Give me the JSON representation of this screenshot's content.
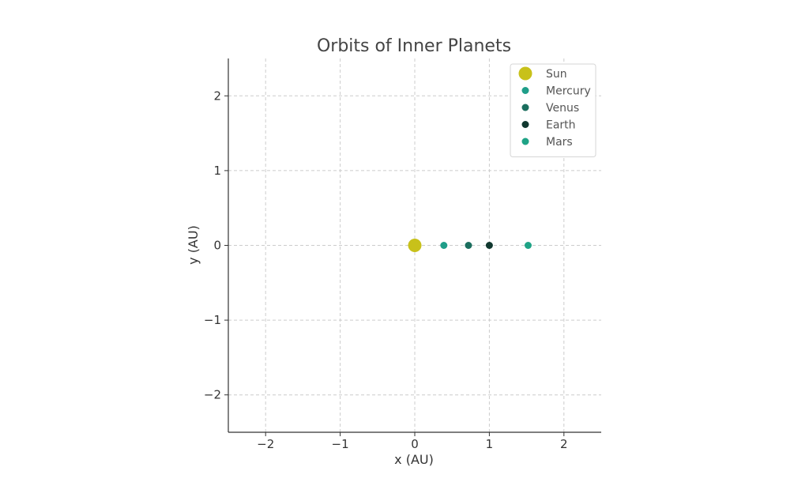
{
  "chart_data": {
    "type": "scatter",
    "title": "Orbits of Inner Planets",
    "xlabel": "x (AU)",
    "ylabel": "y (AU)",
    "xlim": [
      -2.5,
      2.5
    ],
    "ylim": [
      -2.5,
      2.5
    ],
    "xticks": [
      -2,
      -1,
      0,
      1,
      2
    ],
    "yticks": [
      -2,
      -1,
      0,
      1,
      2
    ],
    "xtick_labels": [
      "−2",
      "−1",
      "0",
      "1",
      "2"
    ],
    "ytick_labels": [
      "−2",
      "−1",
      "0",
      "1",
      "2"
    ],
    "grid": true,
    "legend_position": "top-right",
    "series": [
      {
        "name": "Sun",
        "x": [
          0.0
        ],
        "y": [
          0
        ],
        "color": "#c8c11a",
        "marker_size": "large"
      },
      {
        "name": "Mercury",
        "x": [
          0.39
        ],
        "y": [
          0
        ],
        "color": "#1f9e89",
        "marker_size": "small"
      },
      {
        "name": "Venus",
        "x": [
          0.72
        ],
        "y": [
          0
        ],
        "color": "#1b6e5e",
        "marker_size": "small"
      },
      {
        "name": "Earth",
        "x": [
          1.0
        ],
        "y": [
          0
        ],
        "color": "#10382f",
        "marker_size": "small"
      },
      {
        "name": "Mars",
        "x": [
          1.52
        ],
        "y": [
          0
        ],
        "color": "#1fa386",
        "marker_size": "small"
      }
    ]
  }
}
